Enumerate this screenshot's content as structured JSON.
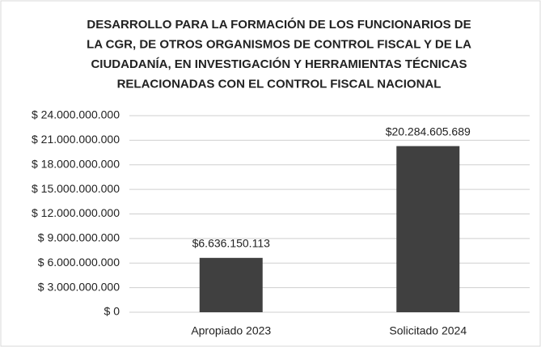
{
  "chart_data": {
    "type": "bar",
    "title": [
      "DESARROLLO PARA LA FORMACIÓN DE LOS FUNCIONARIOS DE",
      "LA CGR, DE OTROS ORGANISMOS DE CONTROL FISCAL Y DE LA",
      "CIUDADANÍA, EN INVESTIGACIÓN Y HERRAMIENTAS TÉCNICAS",
      "RELACIONADAS CON EL CONTROL FISCAL NACIONAL"
    ],
    "categories": [
      "Apropiado 2023",
      "Solicitado 2024"
    ],
    "values": [
      6636150113,
      20284605689
    ],
    "value_labels": [
      "$6.636.150.113",
      "$20.284.605.689"
    ],
    "color": "#404040",
    "ylim": [
      0,
      24000000000
    ],
    "yticks": [
      {
        "value": 0,
        "label": "$ 0"
      },
      {
        "value": 3000000000,
        "label": "$ 3.000.000.000"
      },
      {
        "value": 6000000000,
        "label": "$ 6.000.000.000"
      },
      {
        "value": 9000000000,
        "label": "$ 9.000.000.000"
      },
      {
        "value": 12000000000,
        "label": "$ 12.000.000.000"
      },
      {
        "value": 15000000000,
        "label": "$ 15.000.000.000"
      },
      {
        "value": 18000000000,
        "label": "$ 18.000.000.000"
      },
      {
        "value": 21000000000,
        "label": "$ 21.000.000.000"
      },
      {
        "value": 24000000000,
        "label": "$ 24.000.000.000"
      }
    ],
    "grid": true
  }
}
